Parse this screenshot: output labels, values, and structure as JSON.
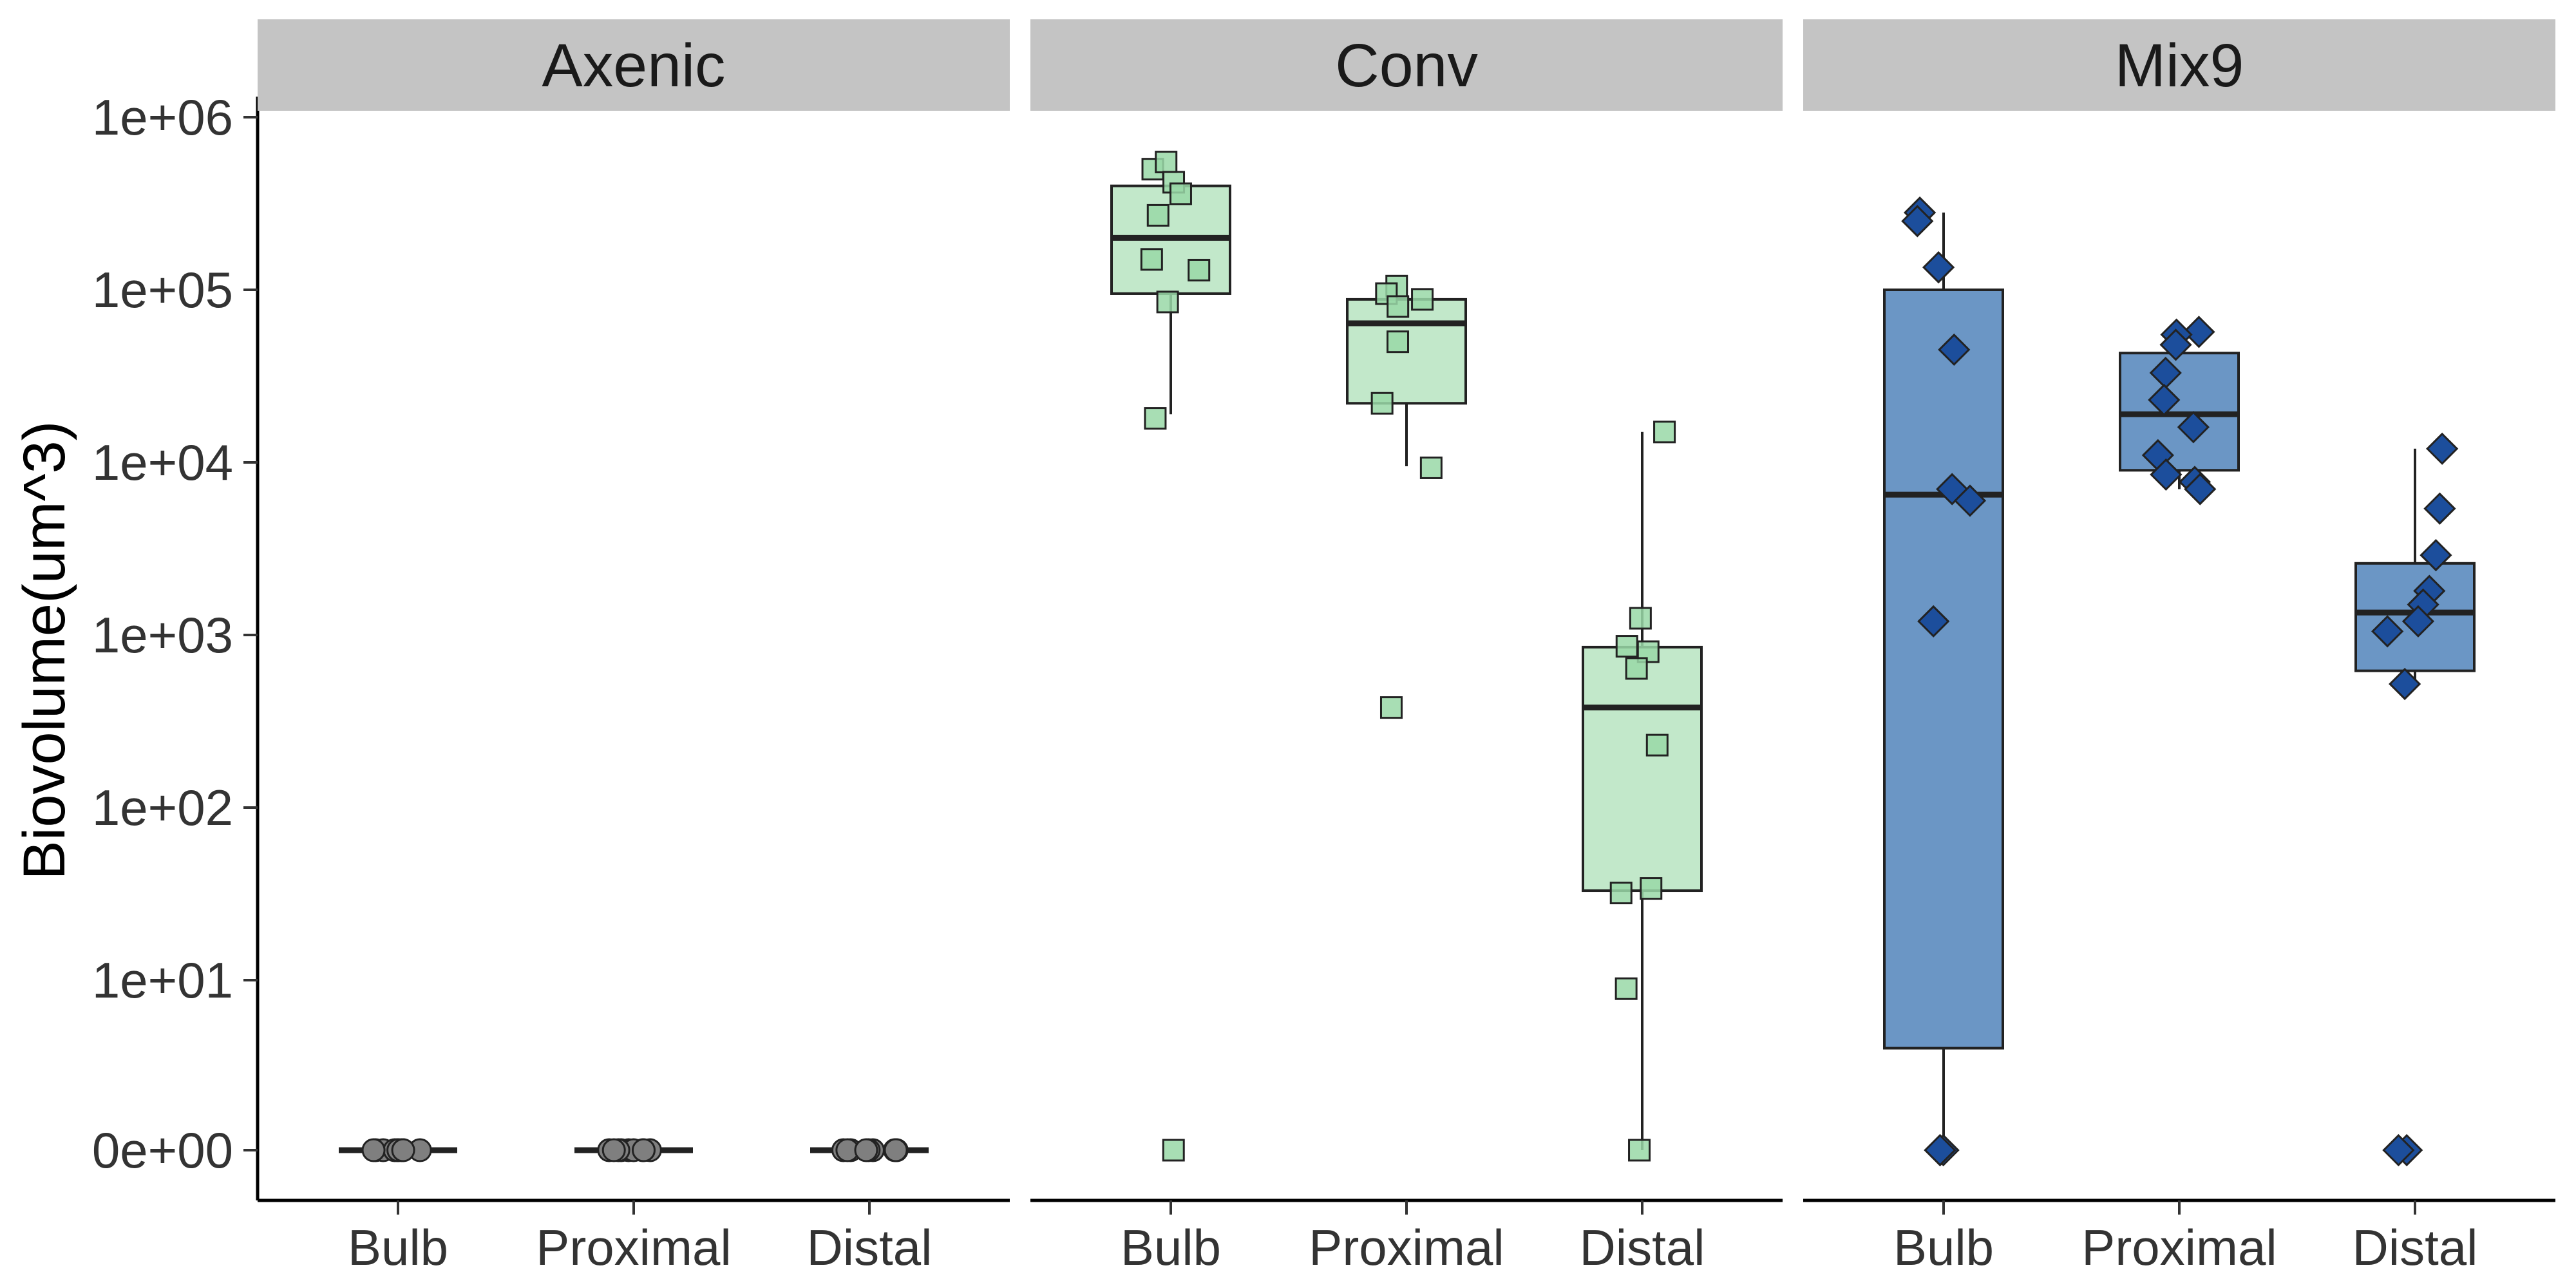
{
  "chart_data": {
    "type": "boxplot",
    "y_label": "Biovolume(um^3)",
    "y_scale": "pseudo-log10 (0 shown at bottom)",
    "y_ticks": [
      "1e+06",
      "1e+05",
      "1e+04",
      "1e+03",
      "1e+02",
      "1e+01",
      "0e+00"
    ],
    "y_tick_values": [
      1000000,
      100000,
      10000,
      1000,
      100,
      10,
      0
    ],
    "categories": [
      "Bulb",
      "Proximal",
      "Distal"
    ],
    "grid": false,
    "legend": "none",
    "panels": [
      {
        "title": "Axenic",
        "box_fill": "#bdbdbd",
        "point_fill": "#7f7f7f",
        "point_shape": "circle",
        "groups": [
          {
            "category": "Bulb",
            "box": {
              "whisker_low": 0,
              "q1": 0,
              "median": 0,
              "q3": 0,
              "whisker_high": 0
            },
            "points": [
              0,
              0,
              0,
              0,
              0,
              0,
              0,
              0,
              0
            ]
          },
          {
            "category": "Proximal",
            "box": {
              "whisker_low": 0,
              "q1": 0,
              "median": 0,
              "q3": 0,
              "whisker_high": 0
            },
            "points": [
              0,
              0,
              0,
              0,
              0,
              0,
              0,
              0,
              0
            ]
          },
          {
            "category": "Distal",
            "box": {
              "whisker_low": 0,
              "q1": 0,
              "median": 0,
              "q3": 0,
              "whisker_high": 0
            },
            "points": [
              0,
              0,
              0,
              0,
              0,
              0,
              0,
              0,
              0
            ]
          }
        ]
      },
      {
        "title": "Conv",
        "box_fill": "#c2e8ca",
        "point_fill": "#99d8a7",
        "point_shape": "square",
        "groups": [
          {
            "category": "Bulb",
            "box": {
              "whisker_low": 19000,
              "q1": 95000,
              "median": 200000,
              "q3": 400000,
              "whisker_high": 400000
            },
            "points": [
              500000,
              550000,
              420000,
              360000,
              270000,
              150000,
              130000,
              85000,
              18000,
              0
            ]
          },
          {
            "category": "Proximal",
            "box": {
              "whisker_low": 9500,
              "q1": 22000,
              "median": 64000,
              "q3": 88000,
              "whisker_high": 88000
            },
            "points": [
              105000,
              95000,
              88000,
              80000,
              50000,
              22000,
              9300,
              380
            ]
          },
          {
            "category": "Distal",
            "box": {
              "whisker_low": 0,
              "q1": 33,
              "median": 380,
              "q3": 850,
              "whisker_high": 15000
            },
            "points": [
              15000,
              1250,
              860,
              800,
              640,
              230,
              34,
              32,
              9.5,
              0
            ]
          }
        ]
      },
      {
        "title": "Mix9",
        "box_fill": "#6b96c5",
        "point_fill": "#1c4e9c",
        "point_shape": "diamond",
        "groups": [
          {
            "category": "Bulb",
            "box": {
              "whisker_low": 0,
              "q1": 6,
              "median": 6500,
              "q3": 100000,
              "whisker_high": 280000
            },
            "points": [
              280000,
              250000,
              135000,
              45000,
              7000,
              6000,
              1200,
              0,
              0,
              0
            ]
          },
          {
            "category": "Proximal",
            "box": {
              "whisker_low": 7000,
              "q1": 9000,
              "median": 19000,
              "q3": 43000,
              "whisker_high": 57000
            },
            "points": [
              57000,
              55000,
              48000,
              33000,
              23000,
              16000,
              11000,
              8500,
              7700,
              7000
            ]
          },
          {
            "category": "Distal",
            "box": {
              "whisker_low": 520,
              "q1": 620,
              "median": 1350,
              "q3": 2600,
              "whisker_high": 12000
            },
            "points": [
              12000,
              5400,
              2900,
              1800,
              1500,
              1200,
              1050,
              520,
              0,
              0
            ]
          }
        ]
      }
    ]
  }
}
